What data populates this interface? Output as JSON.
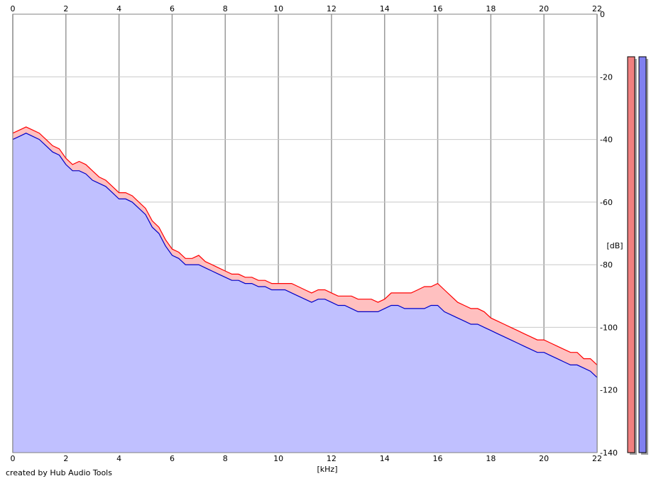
{
  "chart_data": {
    "type": "area",
    "x_unit": "[kHz]",
    "y_unit": "[dB]",
    "xlim": [
      0,
      22
    ],
    "ylim": [
      -140,
      0
    ],
    "x_ticks": [
      "0",
      "2",
      "4",
      "6",
      "8",
      "10",
      "12",
      "14",
      "16",
      "18",
      "20",
      "22"
    ],
    "y_ticks": [
      "0",
      "-20",
      "-40",
      "-60",
      "-80",
      "-100",
      "-120",
      "-140"
    ],
    "grid": true,
    "credit": "created by Hub Audio Tools",
    "series": [
      {
        "color": "#ff0000",
        "fill": "#ffc0c0",
        "x": [
          0,
          0.25,
          0.5,
          0.75,
          1,
          1.25,
          1.5,
          1.75,
          2,
          2.25,
          2.5,
          2.75,
          3,
          3.25,
          3.5,
          3.75,
          4,
          4.25,
          4.5,
          4.75,
          5,
          5.25,
          5.5,
          5.75,
          6,
          6.25,
          6.5,
          6.75,
          7,
          7.25,
          7.5,
          7.75,
          8,
          8.25,
          8.5,
          8.75,
          9,
          9.25,
          9.5,
          9.75,
          10,
          10.25,
          10.5,
          10.75,
          11,
          11.25,
          11.5,
          11.75,
          12,
          12.25,
          12.5,
          12.75,
          13,
          13.25,
          13.5,
          13.75,
          14,
          14.25,
          14.5,
          14.75,
          15,
          15.25,
          15.5,
          15.75,
          16,
          16.25,
          16.5,
          16.75,
          17,
          17.25,
          17.5,
          17.75,
          18,
          18.25,
          18.5,
          18.75,
          19,
          19.25,
          19.5,
          19.75,
          20,
          20.25,
          20.5,
          20.75,
          21,
          21.25,
          21.5,
          21.75,
          22
        ],
        "values": [
          -38,
          -37,
          -36,
          -37,
          -38,
          -40,
          -42,
          -43,
          -46,
          -48,
          -47,
          -48,
          -50,
          -52,
          -53,
          -55,
          -57,
          -57,
          -58,
          -60,
          -62,
          -66,
          -68,
          -72,
          -75,
          -76,
          -78,
          -78,
          -77,
          -79,
          -80,
          -81,
          -82,
          -83,
          -83,
          -84,
          -84,
          -85,
          -85,
          -86,
          -86,
          -86,
          -86,
          -87,
          -88,
          -89,
          -88,
          -88,
          -89,
          -90,
          -90,
          -90,
          -91,
          -91,
          -91,
          -92,
          -91,
          -89,
          -89,
          -89,
          -89,
          -88,
          -87,
          -87,
          -86,
          -88,
          -90,
          -92,
          -93,
          -94,
          -94,
          -95,
          -97,
          -98,
          -99,
          -100,
          -101,
          -102,
          -103,
          -104,
          -104,
          -105,
          -106,
          -107,
          -108,
          -108,
          -110,
          -110,
          -112
        ]
      },
      {
        "color": "#0000c8",
        "fill": "#c0c0ff",
        "x": [
          0,
          0.25,
          0.5,
          0.75,
          1,
          1.25,
          1.5,
          1.75,
          2,
          2.25,
          2.5,
          2.75,
          3,
          3.25,
          3.5,
          3.75,
          4,
          4.25,
          4.5,
          4.75,
          5,
          5.25,
          5.5,
          5.75,
          6,
          6.25,
          6.5,
          6.75,
          7,
          7.25,
          7.5,
          7.75,
          8,
          8.25,
          8.5,
          8.75,
          9,
          9.25,
          9.5,
          9.75,
          10,
          10.25,
          10.5,
          10.75,
          11,
          11.25,
          11.5,
          11.75,
          12,
          12.25,
          12.5,
          12.75,
          13,
          13.25,
          13.5,
          13.75,
          14,
          14.25,
          14.5,
          14.75,
          15,
          15.25,
          15.5,
          15.75,
          16,
          16.25,
          16.5,
          16.75,
          17,
          17.25,
          17.5,
          17.75,
          18,
          18.25,
          18.5,
          18.75,
          19,
          19.25,
          19.5,
          19.75,
          20,
          20.25,
          20.5,
          20.75,
          21,
          21.25,
          21.5,
          21.75,
          22
        ],
        "values": [
          -40,
          -39,
          -38,
          -39,
          -40,
          -42,
          -44,
          -45,
          -48,
          -50,
          -50,
          -51,
          -53,
          -54,
          -55,
          -57,
          -59,
          -59,
          -60,
          -62,
          -64,
          -68,
          -70,
          -74,
          -77,
          -78,
          -80,
          -80,
          -80,
          -81,
          -82,
          -83,
          -84,
          -85,
          -85,
          -86,
          -86,
          -87,
          -87,
          -88,
          -88,
          -88,
          -89,
          -90,
          -91,
          -92,
          -91,
          -91,
          -92,
          -93,
          -93,
          -94,
          -95,
          -95,
          -95,
          -95,
          -94,
          -93,
          -93,
          -94,
          -94,
          -94,
          -94,
          -93,
          -93,
          -95,
          -96,
          -97,
          -98,
          -99,
          -99,
          -100,
          -101,
          -102,
          -103,
          -104,
          -105,
          -106,
          -107,
          -108,
          -108,
          -109,
          -110,
          -111,
          -112,
          -112,
          -113,
          -114,
          -116
        ]
      }
    ],
    "level_meters": [
      {
        "color": "#f08080"
      },
      {
        "color": "#8080f0"
      }
    ]
  }
}
